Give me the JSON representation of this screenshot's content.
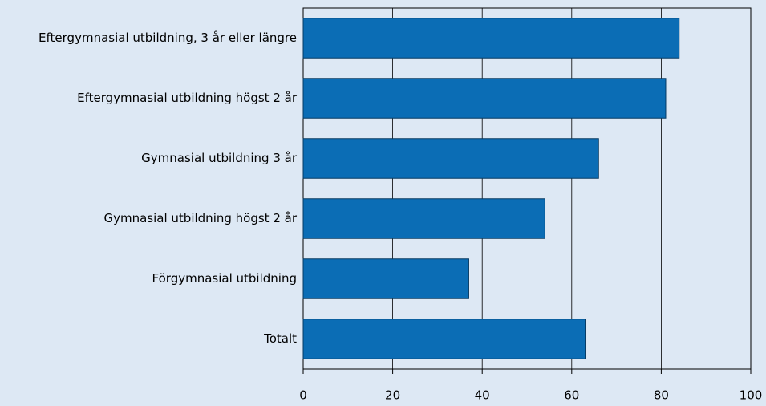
{
  "chart_data": {
    "type": "bar",
    "orientation": "horizontal",
    "categories": [
      "Eftergymnasial utbildning, 3 år eller längre",
      "Eftergymnasial utbildning högst 2 år",
      "Gymnasial utbildning 3 år",
      "Gymnasial utbildning högst 2 år",
      "Förgymnasial utbildning",
      "Totalt"
    ],
    "values": [
      84,
      81,
      66,
      54,
      37,
      63
    ],
    "color": "#0b6db5",
    "xlim": [
      0,
      100
    ],
    "xticks": [
      0,
      20,
      40,
      60,
      80,
      100
    ],
    "grid": true
  }
}
